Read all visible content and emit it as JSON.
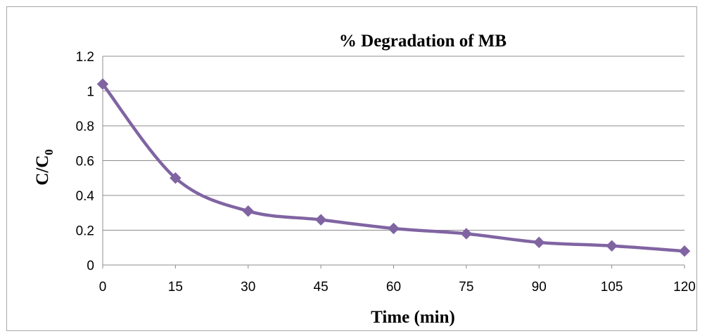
{
  "chart_data": {
    "type": "line",
    "title": "% Degradation of MB",
    "xlabel": "Time (min)",
    "ylabel": {
      "main": "C/C",
      "subscript": "0"
    },
    "x": [
      0,
      15,
      30,
      45,
      60,
      75,
      90,
      105,
      120
    ],
    "x_tick_labels": [
      "0",
      "15",
      "30",
      "45",
      "60",
      "75",
      "90",
      "105",
      "120"
    ],
    "y_tick_labels": [
      "0",
      "0.2",
      "0.4",
      "0.6",
      "0.8",
      "1",
      "1.2"
    ],
    "series": [
      {
        "values": [
          1.04,
          0.5,
          0.31,
          0.26,
          0.21,
          0.18,
          0.13,
          0.11,
          0.08
        ],
        "color": "#8064a2",
        "marker": "diamond",
        "smooth": true
      }
    ],
    "xlim": [
      0,
      120
    ],
    "ylim": [
      0,
      1.2
    ],
    "y_ticks": [
      0,
      0.2,
      0.4,
      0.6,
      0.8,
      1,
      1.2
    ],
    "grid": {
      "horizontal": true,
      "vertical": false,
      "color": "#8c8c8c"
    },
    "legend": "none"
  }
}
